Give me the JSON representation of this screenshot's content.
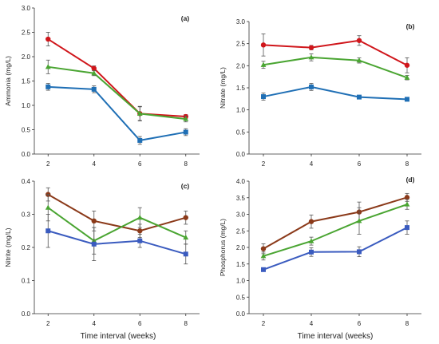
{
  "figure": {
    "shared_xlabel_left": "Time interval (weeks)",
    "shared_xlabel_right": "Time interval (weeks)"
  },
  "chart_data": [
    {
      "panel": "(a)",
      "type": "line",
      "x": [
        2,
        4,
        6,
        8
      ],
      "xticks": [
        "2",
        "4",
        "6",
        "8"
      ],
      "ylabel": "Ammonia (mg/L)",
      "ylim": [
        0,
        3.0
      ],
      "yticks": [
        "0.0",
        "0.5",
        "1.0",
        "1.5",
        "2.0",
        "2.5",
        "3.0"
      ],
      "series": [
        {
          "color": "#d0161b",
          "marker": "circle",
          "values": [
            2.36,
            1.76,
            0.83,
            0.77
          ],
          "errors": [
            0.14,
            0.05,
            0.15,
            0.04
          ]
        },
        {
          "color": "#4aa532",
          "marker": "triangle",
          "values": [
            1.79,
            1.66,
            0.83,
            0.72
          ],
          "errors": [
            0.14,
            0.05,
            0.14,
            0.06
          ]
        },
        {
          "color": "#1f6fb5",
          "marker": "square",
          "values": [
            1.38,
            1.33,
            0.28,
            0.45
          ],
          "errors": [
            0.07,
            0.07,
            0.08,
            0.07
          ]
        }
      ]
    },
    {
      "panel": "(b)",
      "type": "line",
      "x": [
        2,
        4,
        6,
        8
      ],
      "xticks": [
        "2",
        "4",
        "6",
        "8"
      ],
      "ylabel": "Nitrate (mg/L)",
      "ylim": [
        0,
        3.0
      ],
      "yticks": [
        "0.0",
        "0.5",
        "1.0",
        "1.5",
        "2.0",
        "2.5",
        "3.0"
      ],
      "series": [
        {
          "color": "#d0161b",
          "marker": "circle",
          "values": [
            2.47,
            2.41,
            2.57,
            2.01
          ],
          "errors": [
            0.25,
            0.05,
            0.11,
            0.17
          ]
        },
        {
          "color": "#4aa532",
          "marker": "triangle",
          "values": [
            2.02,
            2.19,
            2.12,
            1.73
          ],
          "errors": [
            0.08,
            0.08,
            0.06,
            0.05
          ]
        },
        {
          "color": "#1f6fb5",
          "marker": "square",
          "values": [
            1.3,
            1.52,
            1.29,
            1.24
          ],
          "errors": [
            0.08,
            0.08,
            0.02,
            0.02
          ]
        }
      ]
    },
    {
      "panel": "(c)",
      "type": "line",
      "x": [
        2,
        4,
        6,
        8
      ],
      "xticks": [
        "2",
        "4",
        "6",
        "8"
      ],
      "ylabel": "Nitrite (mg/L)",
      "ylim": [
        0,
        0.4
      ],
      "yticks": [
        "0.0",
        "0.1",
        "0.2",
        "0.3",
        "0.4"
      ],
      "series": [
        {
          "color": "#8b3a1a",
          "marker": "circle",
          "values": [
            0.36,
            0.28,
            0.25,
            0.29
          ],
          "errors": [
            0.02,
            0.03,
            0.02,
            0.02
          ]
        },
        {
          "color": "#4aa532",
          "marker": "triangle",
          "values": [
            0.32,
            0.22,
            0.29,
            0.23
          ],
          "errors": [
            0.04,
            0.04,
            0.03,
            0.02
          ]
        },
        {
          "color": "#3a5bbf",
          "marker": "square",
          "values": [
            0.25,
            0.21,
            0.22,
            0.18
          ],
          "errors": [
            0.05,
            0.05,
            0.02,
            0.03
          ]
        }
      ]
    },
    {
      "panel": "(d)",
      "type": "line",
      "x": [
        2,
        4,
        6,
        8
      ],
      "xticks": [
        "2",
        "4",
        "6",
        "8"
      ],
      "ylabel": "Phosphorus (mg/L)",
      "ylim": [
        0,
        4.0
      ],
      "yticks": [
        "0.0",
        "0.5",
        "1.0",
        "1.5",
        "2.0",
        "2.5",
        "3.0",
        "3.5",
        "4.0"
      ],
      "series": [
        {
          "color": "#8b3a1a",
          "marker": "circle",
          "values": [
            1.96,
            2.78,
            3.07,
            3.51
          ],
          "errors": [
            0.15,
            0.2,
            0.3,
            0.12
          ]
        },
        {
          "color": "#4aa532",
          "marker": "triangle",
          "values": [
            1.74,
            2.19,
            2.8,
            3.3
          ],
          "errors": [
            0.12,
            0.12,
            0.4,
            0.15
          ]
        },
        {
          "color": "#3a5bbf",
          "marker": "square",
          "values": [
            1.33,
            1.86,
            1.87,
            2.6
          ],
          "errors": [
            0.05,
            0.13,
            0.15,
            0.2
          ]
        }
      ]
    }
  ]
}
